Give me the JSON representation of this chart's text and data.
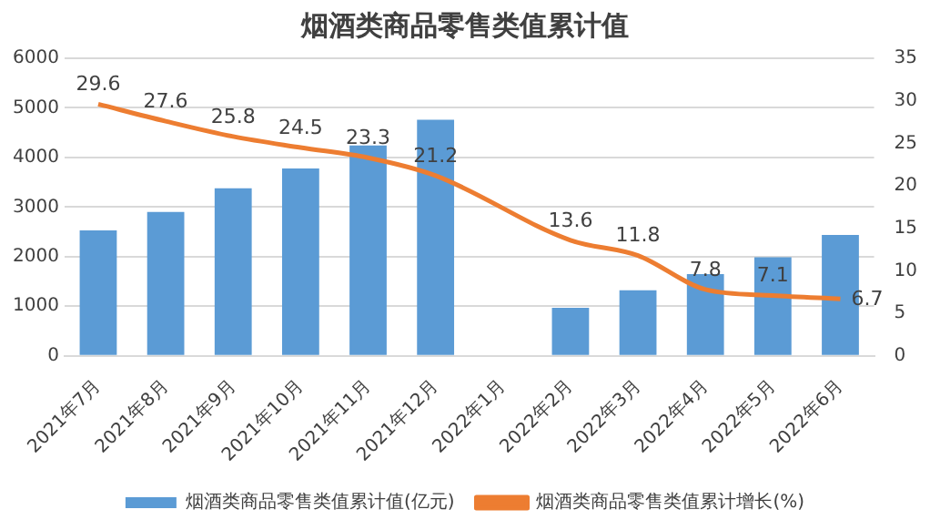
{
  "chart_data": {
    "type": "bar",
    "title": "烟酒类商品零售类值累计值",
    "categories": [
      "2021年7月",
      "2021年8月",
      "2021年9月",
      "2021年10月",
      "2021年11月",
      "2021年12月",
      "2022年1月",
      "2022年2月",
      "2022年3月",
      "2022年4月",
      "2022年5月",
      "2022年6月"
    ],
    "series": [
      {
        "name": "烟酒类商品零售类值累计值(亿元)",
        "color": "#5b9bd5",
        "values": [
          2530,
          2900,
          3380,
          3780,
          4240,
          4760,
          null,
          970,
          1320,
          1650,
          1990,
          2440
        ]
      },
      {
        "name": "烟酒类商品零售类值累计增长(%)",
        "type": "line",
        "axis": "y2",
        "color": "#ed7d31",
        "values": [
          29.6,
          27.6,
          25.8,
          24.5,
          23.3,
          21.2,
          null,
          13.6,
          11.8,
          7.8,
          7.1,
          6.7
        ],
        "value_labels": [
          "29.6",
          "27.6",
          "25.8",
          "24.5",
          "23.3",
          "21.2",
          null,
          "13.6",
          "11.8",
          "7.8",
          "7.1",
          "6.7"
        ]
      }
    ],
    "ylim": [
      0,
      6000
    ],
    "yticks": [
      0,
      1000,
      2000,
      3000,
      4000,
      5000,
      6000
    ],
    "y2lim": [
      0,
      35
    ],
    "y2ticks": [
      0,
      5,
      10,
      15,
      20,
      25,
      30,
      35
    ],
    "grid": "y",
    "legend": "bottom",
    "marker": "none"
  }
}
